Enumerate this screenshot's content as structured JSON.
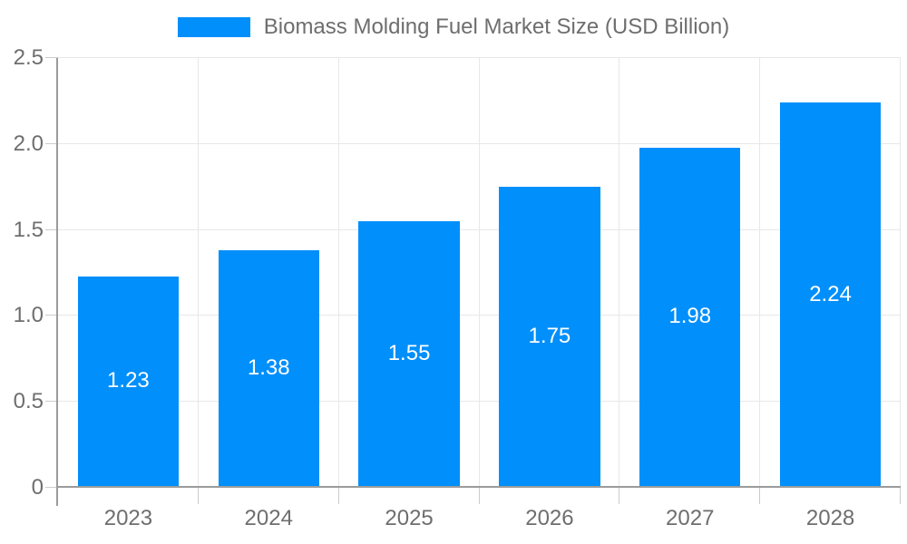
{
  "chart_data": {
    "type": "bar",
    "title": "Biomass Molding Fuel Market Size (USD Billion)",
    "legend": {
      "position": "top",
      "label": "Biomass Molding Fuel Market Size (USD Billion)"
    },
    "categories": [
      "2023",
      "2024",
      "2025",
      "2026",
      "2027",
      "2028"
    ],
    "series": [
      {
        "name": "Biomass Molding Fuel Market Size (USD Billion)",
        "values": [
          1.23,
          1.38,
          1.55,
          1.75,
          1.98,
          2.24
        ]
      }
    ],
    "value_labels": [
      "1.23",
      "1.38",
      "1.55",
      "1.75",
      "1.98",
      "2.24"
    ],
    "xlabel": "",
    "ylabel": "",
    "ylim": [
      0,
      2.5
    ],
    "yticks": [
      0,
      0.5,
      1.0,
      1.5,
      2.0,
      2.5
    ],
    "ytick_labels": [
      "0",
      "0.5",
      "1.0",
      "1.5",
      "2.0",
      "2.5"
    ],
    "grid": true,
    "colors": {
      "bar": "#008FFB",
      "grid": "#e8e8e8",
      "axis": "#9b9b9b",
      "category_tick": "#cccccc",
      "label_text": "#6e6e6e",
      "value_text": "#ffffff",
      "background": "#ffffff"
    }
  }
}
